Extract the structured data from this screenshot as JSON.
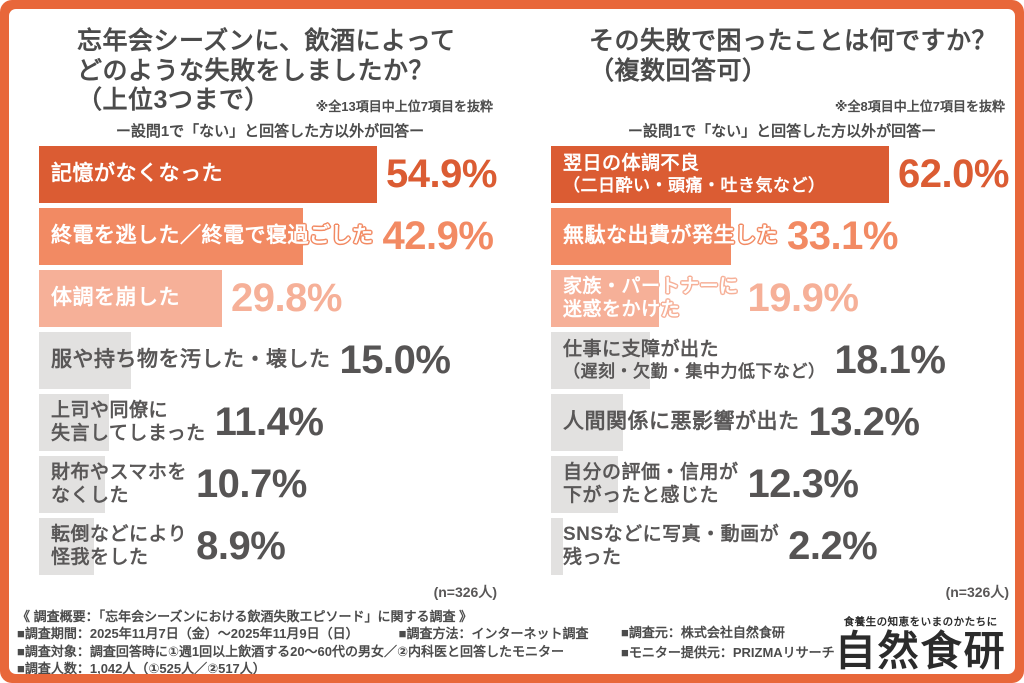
{
  "colors": {
    "border_orange": "#E8673A",
    "rank1_orange": "#DB5C33",
    "rank2_orange": "#F28A63",
    "rank3_orange": "#F6B098",
    "gray_bar": "#E2E1E0",
    "text_dark_gray": "#4B4B4B",
    "text_gray": "#595757"
  },
  "charts": [
    {
      "title_lines": [
        "忘年会シーズンに、飲酒によって",
        "どのような失敗をしましたか？",
        "（上位3つまで）"
      ],
      "note": "※全13項目中上位7項目を抜粋",
      "subtitle": "ー設問1で「ない」と回答した方以外が回答ー",
      "sample": "(n=326人)",
      "bars": [
        {
          "label_lines": [
            "記憶がなくなった"
          ],
          "value": 54.9,
          "display": "54.9%",
          "rank": 1
        },
        {
          "label_lines": [
            "終電を逃した／終電で寝過ごした"
          ],
          "value": 42.9,
          "display": "42.9%",
          "rank": 2
        },
        {
          "label_lines": [
            "体調を崩した"
          ],
          "value": 29.8,
          "display": "29.8%",
          "rank": 3
        },
        {
          "label_lines": [
            "服や持ち物を汚した・壊した"
          ],
          "value": 15.0,
          "display": "15.0%",
          "rank": 0
        },
        {
          "label_lines": [
            "上司や同僚に",
            "失言してしまった"
          ],
          "value": 11.4,
          "display": "11.4%",
          "rank": 0
        },
        {
          "label_lines": [
            "財布やスマホを",
            "なくした"
          ],
          "value": 10.7,
          "display": "10.7%",
          "rank": 0
        },
        {
          "label_lines": [
            "転倒などにより",
            "怪我をした"
          ],
          "value": 8.9,
          "display": "8.9%",
          "rank": 0
        }
      ]
    },
    {
      "title_lines": [
        "その失敗で困ったことは何ですか？",
        "（複数回答可）"
      ],
      "note": "※全8項目中上位7項目を抜粋",
      "subtitle": "ー設問1で「ない」と回答した方以外が回答ー",
      "sample": "(n=326人)",
      "bars": [
        {
          "label_lines": [
            "翌日の体調不良",
            "（二日酔い・頭痛・吐き気など）"
          ],
          "value": 62.0,
          "display": "62.0%",
          "rank": 1
        },
        {
          "label_lines": [
            "無駄な出費が発生した"
          ],
          "value": 33.1,
          "display": "33.1%",
          "rank": 2
        },
        {
          "label_lines": [
            "家族・パートナーに",
            "迷惑をかけた"
          ],
          "value": 19.9,
          "display": "19.9%",
          "rank": 3
        },
        {
          "label_lines": [
            "仕事に支障が出た",
            "（遅刻・欠勤・集中力低下など）"
          ],
          "value": 18.1,
          "display": "18.1%",
          "rank": 0
        },
        {
          "label_lines": [
            "人間関係に悪影響が出た"
          ],
          "value": 13.2,
          "display": "13.2%",
          "rank": 0
        },
        {
          "label_lines": [
            "自分の評価・信用が",
            "下がったと感じた"
          ],
          "value": 12.3,
          "display": "12.3%",
          "rank": 0
        },
        {
          "label_lines": [
            "SNSなどに写真・動画が",
            "残った"
          ],
          "value": 2.2,
          "display": "2.2%",
          "rank": 0
        }
      ]
    }
  ],
  "footer": {
    "heading": "《 調査概要：「忘年会シーズンにおける飲酒失敗エピソード」に関する調査 》",
    "period": "■調査期間：2025年11月7日（金）〜2025年11月9日（日）",
    "method": "■調査方法：インターネット調査",
    "target": "■調査対象：調査回答時に①週1回以上飲酒する20〜60代の男女／②内科医と回答したモニター",
    "people": "■調査人数：1,042人（①525人／②517人）",
    "source": "■調査元：株式会社自然食研",
    "monitor": "■モニター提供元：PRIZMAリサーチ"
  },
  "logo": {
    "tagline": "食養生の知恵をいまのかたちに",
    "name": "自然食研"
  },
  "chart_data": [
    {
      "type": "bar",
      "orientation": "horizontal",
      "title": "忘年会シーズンに、飲酒によってどのような失敗をしましたか？（上位3つまで）",
      "note": "※全13項目中上位7項目を抜粋",
      "condition": "ー設問1で「ない」と回答した方以外が回答ー",
      "categories": [
        "記憶がなくなった",
        "終電を逃した／終電で寝過ごした",
        "体調を崩した",
        "服や持ち物を汚した・壊した",
        "上司や同僚に失言してしまった",
        "財布やスマホをなくした",
        "転倒などにより怪我をした"
      ],
      "values": [
        54.9,
        42.9,
        29.8,
        15.0,
        11.4,
        10.7,
        8.9
      ],
      "unit": "%",
      "sample_size": "n=326人",
      "xlim": [
        0,
        75
      ],
      "grid": false,
      "legend": false
    },
    {
      "type": "bar",
      "orientation": "horizontal",
      "title": "その失敗で困ったことは何ですか？（複数回答可）",
      "note": "※全8項目中上位7項目を抜粋",
      "condition": "ー設問1で「ない」と回答した方以外が回答ー",
      "categories": [
        "翌日の体調不良（二日酔い・頭痛・吐き気など）",
        "無駄な出費が発生した",
        "家族・パートナーに迷惑をかけた",
        "仕事に支障が出た（遅刻・欠勤・集中力低下など）",
        "人間関係に悪影響が出た",
        "自分の評価・信用が下がったと感じた",
        "SNSなどに写真・動画が残った"
      ],
      "values": [
        62.0,
        33.1,
        19.9,
        18.1,
        13.2,
        12.3,
        2.2
      ],
      "unit": "%",
      "sample_size": "n=326人",
      "xlim": [
        0,
        75
      ],
      "grid": false,
      "legend": false
    }
  ]
}
